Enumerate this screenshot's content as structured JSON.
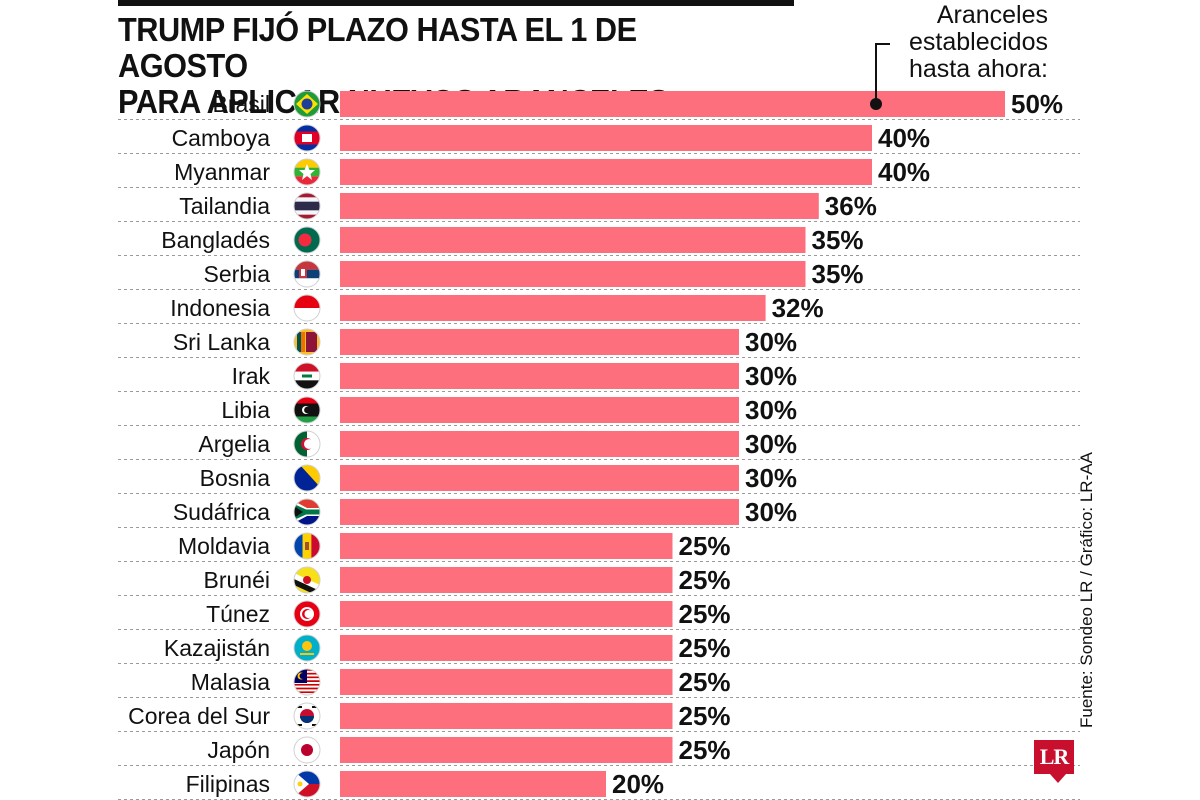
{
  "header": {
    "title_line1": "TRUMP FIJÓ PLAZO HASTA EL 1 DE AGOSTO",
    "title_line2": "PARA APLICAR NUEVOS ARANCELES"
  },
  "annotation": {
    "line1": "Aranceles",
    "line2": "establecidos",
    "line3": "hasta ahora:"
  },
  "source": "Fuente: Sondeo LR / Gráfico: LR-AA",
  "logo": "LR",
  "colors": {
    "bar": "#fd6f7c",
    "text": "#111111",
    "rule": "#9a9a9a"
  },
  "chart_data": {
    "type": "bar",
    "orientation": "horizontal",
    "title": "TRUMP FIJÓ PLAZO HASTA EL 1 DE AGOSTO PARA APLICAR NUEVOS ARANCELES",
    "value_suffix": "%",
    "xlim": [
      0,
      50
    ],
    "categories": [
      "Brasil",
      "Camboya",
      "Myanmar",
      "Tailandia",
      "Bangladés",
      "Serbia",
      "Indonesia",
      "Sri Lanka",
      "Irak",
      "Libia",
      "Argelia",
      "Bosnia",
      "Sudáfrica",
      "Moldavia",
      "Brunéi",
      "Túnez",
      "Kazajistán",
      "Malasia",
      "Corea del Sur",
      "Japón",
      "Filipinas"
    ],
    "values": [
      50,
      40,
      40,
      36,
      35,
      35,
      32,
      30,
      30,
      30,
      30,
      30,
      30,
      25,
      25,
      25,
      25,
      25,
      25,
      25,
      20
    ],
    "labels": [
      "50%",
      "40%",
      "40%",
      "36%",
      "35%",
      "35%",
      "32%",
      "30%",
      "30%",
      "30%",
      "30%",
      "30%",
      "30%",
      "25%",
      "25%",
      "25%",
      "25%",
      "25%",
      "25%",
      "25%",
      "20%"
    ],
    "flags": [
      "brazil-flag-icon",
      "cambodia-flag-icon",
      "myanmar-flag-icon",
      "thailand-flag-icon",
      "bangladesh-flag-icon",
      "serbia-flag-icon",
      "indonesia-flag-icon",
      "sri-lanka-flag-icon",
      "iraq-flag-icon",
      "libya-flag-icon",
      "algeria-flag-icon",
      "bosnia-flag-icon",
      "south-africa-flag-icon",
      "moldova-flag-icon",
      "brunei-flag-icon",
      "tunisia-flag-icon",
      "kazakhstan-flag-icon",
      "malaysia-flag-icon",
      "korea-flag-icon",
      "japan-flag-icon",
      "philippines-flag-icon"
    ]
  }
}
